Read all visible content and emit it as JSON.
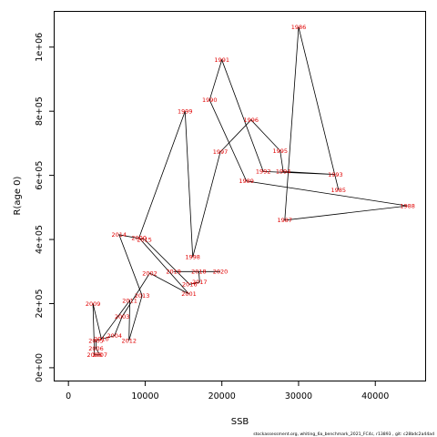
{
  "chart_data": {
    "type": "scatter",
    "xlabel": "SSB",
    "ylabel": "R(age 0)",
    "xlim": [
      -1800,
      46500
    ],
    "ylim": [
      -40000,
      1110000
    ],
    "xticks": [
      0,
      10000,
      20000,
      30000,
      40000
    ],
    "xtick_labels": [
      "0",
      "10000",
      "20000",
      "30000",
      "40000"
    ],
    "yticks": [
      0,
      200000,
      400000,
      600000,
      800000,
      1000000
    ],
    "ytick_labels": [
      "0e+00",
      "2e+05",
      "4e+05",
      "6e+05",
      "8e+05",
      "1e+06"
    ],
    "grid": false,
    "label_color": "#e00000",
    "connect_in_year_order": true,
    "points": [
      {
        "year": "1985",
        "x": 35200,
        "y": 555000
      },
      {
        "year": "1986",
        "x": 30000,
        "y": 1062000
      },
      {
        "year": "1987",
        "x": 28200,
        "y": 460000
      },
      {
        "year": "1988",
        "x": 44200,
        "y": 505000
      },
      {
        "year": "1989",
        "x": 23200,
        "y": 582000
      },
      {
        "year": "1990",
        "x": 18400,
        "y": 835000
      },
      {
        "year": "1991",
        "x": 20000,
        "y": 960000
      },
      {
        "year": "1992",
        "x": 25400,
        "y": 612000
      },
      {
        "year": "1993",
        "x": 34800,
        "y": 603000
      },
      {
        "year": "1994",
        "x": 28000,
        "y": 612000
      },
      {
        "year": "1995",
        "x": 27600,
        "y": 677000
      },
      {
        "year": "1996",
        "x": 23800,
        "y": 773000
      },
      {
        "year": "1997",
        "x": 19800,
        "y": 673000
      },
      {
        "year": "1998",
        "x": 16200,
        "y": 345000
      },
      {
        "year": "1999",
        "x": 15200,
        "y": 800000
      },
      {
        "year": "2000",
        "x": 9200,
        "y": 405000
      },
      {
        "year": "2001",
        "x": 15700,
        "y": 230000
      },
      {
        "year": "2002",
        "x": 10600,
        "y": 295000
      },
      {
        "year": "2003",
        "x": 7000,
        "y": 160000
      },
      {
        "year": "2004",
        "x": 6000,
        "y": 100000
      },
      {
        "year": "2005",
        "x": 3600,
        "y": 85000
      },
      {
        "year": "2006",
        "x": 3600,
        "y": 60000
      },
      {
        "year": "2007",
        "x": 4100,
        "y": 40000
      },
      {
        "year": "2008",
        "x": 3400,
        "y": 40000
      },
      {
        "year": "2009",
        "x": 3200,
        "y": 200000
      },
      {
        "year": "2010",
        "x": 4300,
        "y": 90000
      },
      {
        "year": "2011",
        "x": 8000,
        "y": 210000
      },
      {
        "year": "2012",
        "x": 7900,
        "y": 85000
      },
      {
        "year": "2013",
        "x": 9600,
        "y": 225000
      },
      {
        "year": "2014",
        "x": 6600,
        "y": 415000
      },
      {
        "year": "2015",
        "x": 9900,
        "y": 400000
      },
      {
        "year": "2016",
        "x": 15800,
        "y": 260000
      },
      {
        "year": "2017",
        "x": 17100,
        "y": 267000
      },
      {
        "year": "2018",
        "x": 17000,
        "y": 300000
      },
      {
        "year": "2019",
        "x": 13700,
        "y": 300000
      },
      {
        "year": "2020",
        "x": 19800,
        "y": 300000
      }
    ]
  },
  "footer": {
    "credit": "stockassessment.org,  whiting_6a_benchmark_2021_FC4c,  r13893 ,  git: c28bdc2a44ad"
  }
}
